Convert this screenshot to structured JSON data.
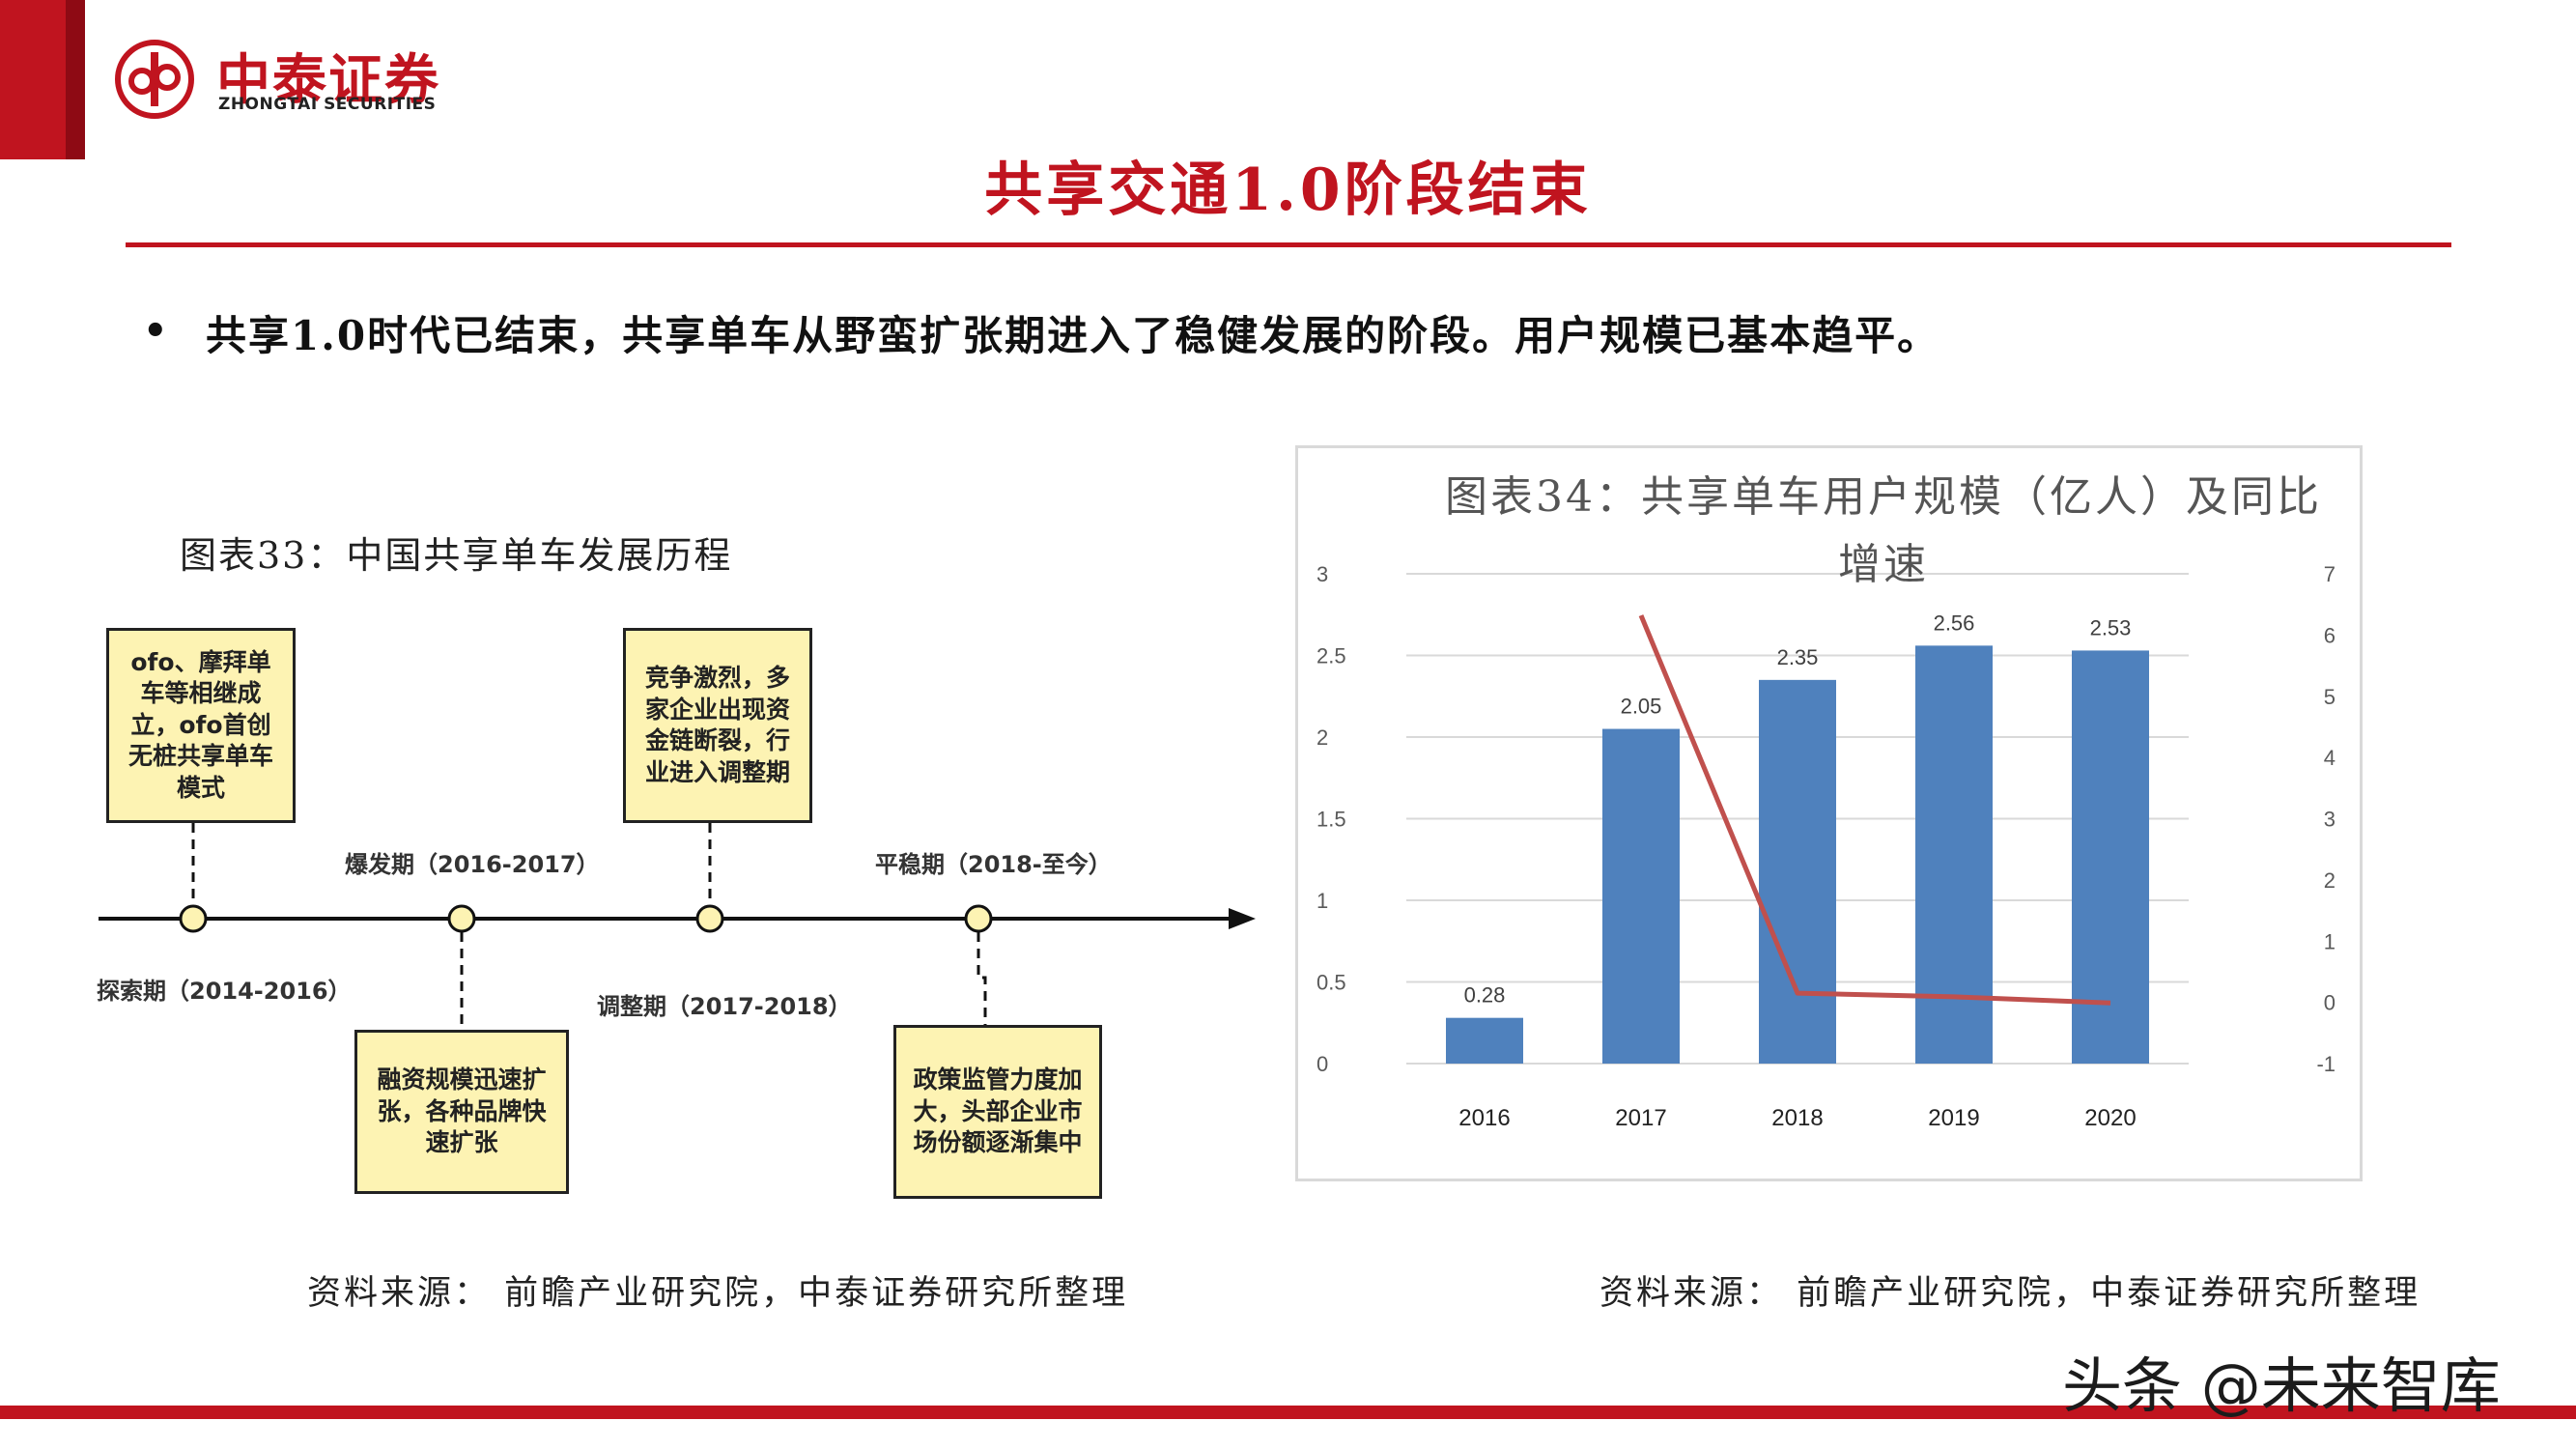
{
  "header": {
    "logo_cn": "中泰证券",
    "logo_en": "ZHONGTAI SECURITIES",
    "title": "共享交通1.0阶段结束",
    "bullet": "共享1.0时代已结束，共享单车从野蛮扩张期进入了稳健发展的阶段。用户规模已基本趋平。"
  },
  "timeline": {
    "caption": "图表33：中国共享单车发展历程",
    "stages": [
      {
        "label": "探索期（2014-2016）",
        "box": "ofo、摩拜单车等相继成立，ofo首创无桩共享单车模式"
      },
      {
        "label": "爆发期（2016-2017）",
        "box": "融资规模迅速扩张，各种品牌快速扩张"
      },
      {
        "label": "调整期（2017-2018）",
        "box": "竞争激烈，多家企业出现资金链断裂，行业进入调整期"
      },
      {
        "label": "平稳期（2018-至今）",
        "box": "政策监管力度加大，头部企业市场份额逐渐集中"
      }
    ]
  },
  "chart_data": {
    "type": "bar",
    "title": "图表34：共享单车用户规模（亿人）及同比增速",
    "categories": [
      "2016",
      "2017",
      "2018",
      "2019",
      "2020"
    ],
    "series": [
      {
        "type": "bar",
        "axis": "left",
        "values": [
          0.28,
          2.05,
          2.35,
          2.56,
          2.53
        ],
        "color": "#4f81bd",
        "data_labels": [
          "0.28",
          "2.05",
          "2.35",
          "2.56",
          "2.53"
        ]
      },
      {
        "type": "line",
        "axis": "right",
        "values": [
          null,
          6.32,
          0.15,
          0.09,
          -0.01
        ],
        "color": "#c0504d"
      }
    ],
    "y_left": {
      "lim": [
        0,
        3
      ],
      "ticks": [
        "0",
        "0.5",
        "1",
        "1.5",
        "2",
        "2.5",
        "3"
      ]
    },
    "y_right": {
      "lim": [
        -1,
        7
      ],
      "ticks": [
        "-1",
        "0",
        "1",
        "2",
        "3",
        "4",
        "5",
        "6",
        "7"
      ]
    },
    "grid": true
  },
  "sources": {
    "left": "资料来源：  前瞻产业研究院，中泰证券研究所整理",
    "right": "资料来源：  前瞻产业研究院，中泰证券研究所整理"
  },
  "watermark": "头条 @未来智库",
  "colors": {
    "brand_red": "#c0141f",
    "bar_blue": "#4f81bd",
    "line_red": "#c0504d",
    "box_yellow": "#fdf3b3"
  }
}
